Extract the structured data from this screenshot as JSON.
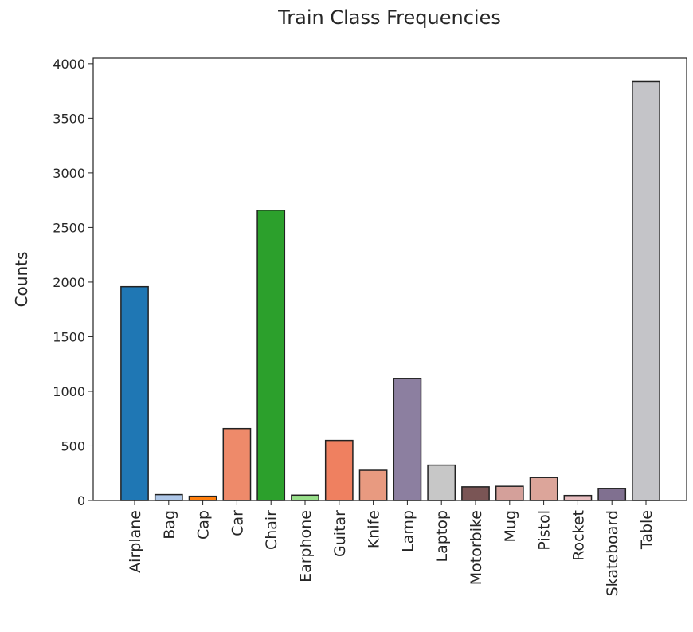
{
  "chart_data": {
    "type": "bar",
    "title": "Train Class Frequencies",
    "xlabel": "",
    "ylabel": "Counts",
    "ylim": [
      0,
      4050
    ],
    "yticks": [
      0,
      500,
      1000,
      1500,
      2000,
      2500,
      3000,
      3500,
      4000
    ],
    "grid": false,
    "categories": [
      "Airplane",
      "Bag",
      "Cap",
      "Car",
      "Chair",
      "Earphone",
      "Guitar",
      "Knife",
      "Lamp",
      "Laptop",
      "Motorbike",
      "Mug",
      "Pistol",
      "Rocket",
      "Skateboard",
      "Table"
    ],
    "values": [
      1958,
      54,
      39,
      659,
      2658,
      49,
      550,
      277,
      1118,
      324,
      125,
      130,
      210,
      46,
      111,
      3835
    ],
    "colors": [
      "#1f77b4",
      "#aec7e8",
      "#ff7f0e",
      "#ee8a6a",
      "#2ca02c",
      "#98df8a",
      "#ef8060",
      "#e89a80",
      "#8c7fa0",
      "#c7c7c7",
      "#7a5555",
      "#d4a09a",
      "#dca59a",
      "#e8bec0",
      "#807090",
      "#c4c4c8"
    ],
    "edge_color": "#222222"
  }
}
